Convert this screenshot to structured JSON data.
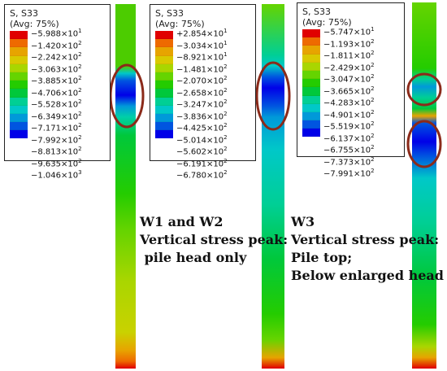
{
  "legend_title": "S, S33",
  "legend_subtitle": "(Avg: 75%)",
  "colors": [
    "#e00000",
    "#ee6a00",
    "#e7a400",
    "#d9c900",
    "#a9d600",
    "#65d400",
    "#24cc00",
    "#00c83b",
    "#00cf95",
    "#00c8c8",
    "#0099d9",
    "#0055e0",
    "#0000e8"
  ],
  "legends": [
    {
      "id": "w1",
      "labels": [
        "−5.988×10^1",
        "−1.420×10^2",
        "−2.242×10^2",
        "−3.063×10^2",
        "−3.885×10^2",
        "−4.706×10^2",
        "−5.528×10^2",
        "−6.349×10^2",
        "−7.171×10^2",
        "−7.992×10^2",
        "−8.813×10^2",
        "−9.635×10^2",
        "−1.046×10^3"
      ]
    },
    {
      "id": "w2",
      "labels": [
        "+2.854×10^1",
        "−3.034×10^1",
        "−8.921×10^1",
        "−1.481×10^2",
        "−2.070×10^2",
        "−2.658×10^2",
        "−3.247×10^2",
        "−3.836×10^2",
        "−4.425×10^2",
        "−5.014×10^2",
        "−5.602×10^2",
        "−6.191×10^2",
        "−6.780×10^2"
      ]
    },
    {
      "id": "w3",
      "labels": [
        "−5.747×10^1",
        "−1.193×10^2",
        "−1.811×10^2",
        "−2.429×10^2",
        "−3.047×10^2",
        "−3.665×10^2",
        "−4.283×10^2",
        "−4.901×10^2",
        "−5.519×10^2",
        "−6.137×10^2",
        "−6.755×10^2",
        "−7.373×10^2",
        "−7.991×10^2"
      ]
    }
  ],
  "annotations": {
    "left": [
      "W1 and W2",
      "Vertical stress peak:",
      " pile head only"
    ],
    "right": [
      "W3",
      "Vertical stress peak:",
      "Pile top;",
      "Below enlarged head"
    ]
  },
  "highlight_color": "#8b2a1a"
}
